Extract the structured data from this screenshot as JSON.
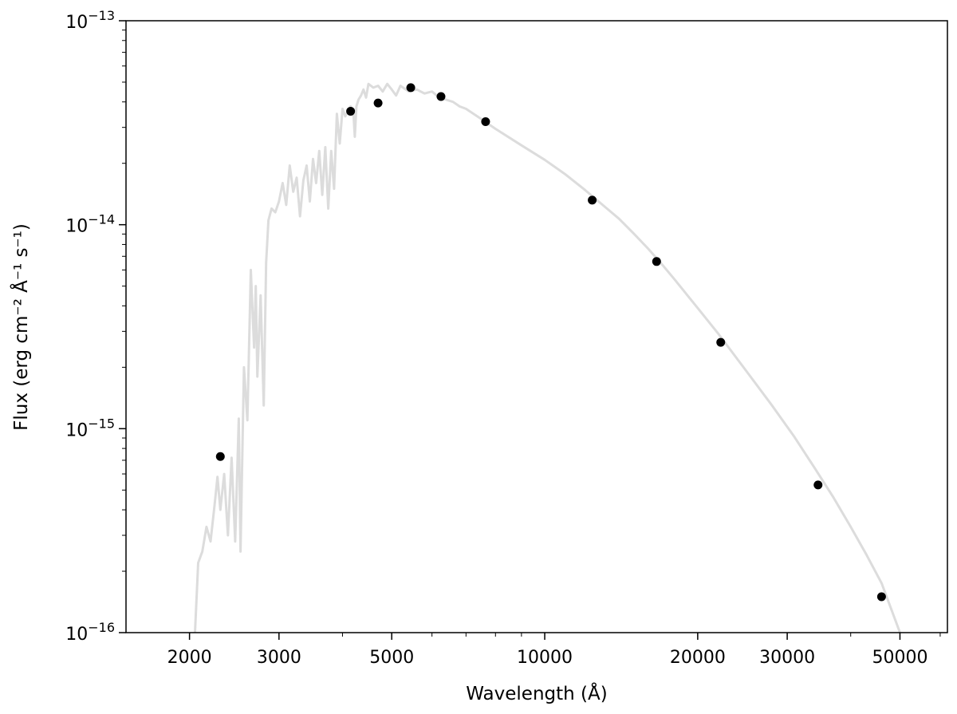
{
  "chart_data": {
    "type": "scatter",
    "title": "",
    "xlabel": "Wavelength (Å)",
    "ylabel": "Flux (erg cm⁻² Å⁻¹ s⁻¹)",
    "xscale": "log",
    "yscale": "log",
    "xlim": [
      1500,
      62000
    ],
    "ylim": [
      1e-16,
      1e-13
    ],
    "grid": false,
    "legend": "none",
    "x_ticks": [
      {
        "value": 2000,
        "label": "2000"
      },
      {
        "value": 3000,
        "label": "3000"
      },
      {
        "value": 5000,
        "label": "5000"
      },
      {
        "value": 10000,
        "label": "10000"
      },
      {
        "value": 20000,
        "label": "20000"
      },
      {
        "value": 30000,
        "label": "30000"
      },
      {
        "value": 50000,
        "label": "50000"
      }
    ],
    "y_ticks": [
      {
        "value": 1e-16,
        "base": "10",
        "exp": "−16"
      },
      {
        "value": 1e-15,
        "base": "10",
        "exp": "−15"
      },
      {
        "value": 1e-14,
        "base": "10",
        "exp": "−14"
      },
      {
        "value": 1e-13,
        "base": "10",
        "exp": "−13"
      }
    ],
    "series": [
      {
        "kind": "line",
        "color": "#dcdcdc",
        "x": [
          2050,
          2080,
          2120,
          2160,
          2200,
          2240,
          2270,
          2300,
          2340,
          2380,
          2420,
          2460,
          2500,
          2520,
          2560,
          2600,
          2640,
          2680,
          2700,
          2720,
          2760,
          2800,
          2830,
          2860,
          2900,
          2950,
          3000,
          3050,
          3100,
          3150,
          3200,
          3250,
          3300,
          3350,
          3400,
          3450,
          3500,
          3550,
          3600,
          3650,
          3700,
          3750,
          3800,
          3850,
          3900,
          3950,
          4000,
          4050,
          4100,
          4150,
          4200,
          4230,
          4260,
          4300,
          4350,
          4400,
          4450,
          4500,
          4600,
          4700,
          4800,
          4900,
          5000,
          5100,
          5200,
          5400,
          5600,
          5800,
          6000,
          6200,
          6400,
          6600,
          6800,
          7000,
          7500,
          8000,
          9000,
          10000,
          11000,
          12000,
          13000,
          14000,
          15000,
          16000,
          17000,
          18000,
          20000,
          22000,
          25000,
          28000,
          31000,
          34000,
          37000,
          40000,
          43000,
          46000,
          50000
        ],
        "y": [
          1e-16,
          2.2e-16,
          2.5e-16,
          3.3e-16,
          2.8e-16,
          4.2e-16,
          5.8e-16,
          4e-16,
          6e-16,
          3e-16,
          7.2e-16,
          2.8e-16,
          1.12e-15,
          2.5e-16,
          2e-15,
          1.1e-15,
          6e-15,
          2.5e-15,
          5e-15,
          1.8e-15,
          4.5e-15,
          1.3e-15,
          6.5e-15,
          1.05e-14,
          1.2e-14,
          1.15e-14,
          1.3e-14,
          1.6e-14,
          1.25e-14,
          1.95e-14,
          1.45e-14,
          1.7e-14,
          1.1e-14,
          1.65e-14,
          1.95e-14,
          1.3e-14,
          2.1e-14,
          1.6e-14,
          2.3e-14,
          1.4e-14,
          2.4e-14,
          1.2e-14,
          2.3e-14,
          1.5e-14,
          3.5e-14,
          2.5e-14,
          3.7e-14,
          3.4e-14,
          3.6e-14,
          3.8e-14,
          3.6e-14,
          2.7e-14,
          3.8e-14,
          4.1e-14,
          4.3e-14,
          4.6e-14,
          4.2e-14,
          4.9e-14,
          4.7e-14,
          4.8e-14,
          4.5e-14,
          4.9e-14,
          4.6e-14,
          4.3e-14,
          4.8e-14,
          4.5e-14,
          4.6e-14,
          4.4e-14,
          4.5e-14,
          4.2e-14,
          4.1e-14,
          4e-14,
          3.8e-14,
          3.7e-14,
          3.3e-14,
          2.95e-14,
          2.45e-14,
          2.08e-14,
          1.76e-14,
          1.48e-14,
          1.25e-14,
          1.07e-14,
          9e-15,
          7.6e-15,
          6.4e-15,
          5.4e-15,
          3.9e-15,
          2.9e-15,
          1.9e-15,
          1.3e-15,
          9.1e-16,
          6.4e-16,
          4.6e-16,
          3.3e-16,
          2.4e-16,
          1.75e-16,
          1e-16
        ]
      },
      {
        "kind": "points",
        "color": "#000000",
        "x": [
          2300,
          4150,
          4700,
          5450,
          6250,
          7650,
          12400,
          16600,
          22200,
          34500,
          46000
        ],
        "y": [
          7.3e-16,
          3.6e-14,
          3.95e-14,
          4.7e-14,
          4.25e-14,
          3.2e-14,
          1.32e-14,
          6.6e-15,
          2.65e-15,
          5.3e-16,
          1.5e-16
        ],
        "yerr": [
          3e-17,
          0,
          0,
          0,
          0,
          0,
          0,
          0,
          0,
          0,
          0
        ]
      }
    ]
  }
}
